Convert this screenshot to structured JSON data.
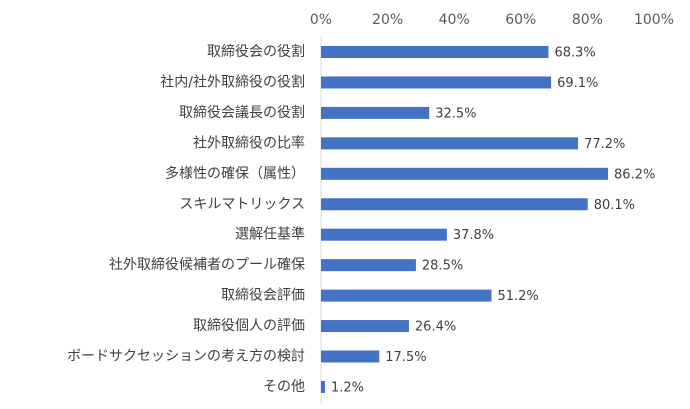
{
  "chart_data": {
    "type": "bar",
    "orientation": "horizontal",
    "title": "",
    "xlabel": "",
    "ylabel": "",
    "xlim": [
      0,
      100
    ],
    "ticks": [
      "0%",
      "20%",
      "40%",
      "60%",
      "80%",
      "100%"
    ],
    "tick_values": [
      0,
      20,
      40,
      60,
      80,
      100
    ],
    "axis_position": "top",
    "grid": false,
    "legend": "none",
    "bar_color": "#4472c4",
    "categories": [
      "取締役会の役割",
      "社内/社外取締役の役割",
      "取締役会議長の役割",
      "社外取締役の比率",
      "多様性の確保（属性）",
      "スキルマトリックス",
      "選解任基準",
      "社外取締役候補者のプール確保",
      "取締役会評価",
      "取締役個人の評価",
      "ボードサクセッションの考え方の検討",
      "その他"
    ],
    "values": [
      68.3,
      69.1,
      32.5,
      77.2,
      86.2,
      80.1,
      37.8,
      28.5,
      51.2,
      26.4,
      17.5,
      1.2
    ],
    "data_labels": [
      "68.3%",
      "69.1%",
      "32.5%",
      "77.2%",
      "86.2%",
      "80.1%",
      "37.8%",
      "28.5%",
      "51.2%",
      "26.4%",
      "17.5%",
      "1.2%"
    ]
  }
}
